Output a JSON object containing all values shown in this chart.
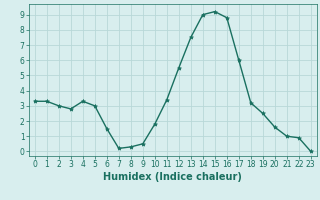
{
  "x": [
    0,
    1,
    2,
    3,
    4,
    5,
    6,
    7,
    8,
    9,
    10,
    11,
    12,
    13,
    14,
    15,
    16,
    17,
    18,
    19,
    20,
    21,
    22,
    23
  ],
  "y": [
    3.3,
    3.3,
    3.0,
    2.8,
    3.3,
    3.0,
    1.5,
    0.2,
    0.3,
    0.5,
    1.8,
    3.4,
    5.5,
    7.5,
    9.0,
    9.2,
    8.8,
    6.0,
    3.2,
    2.5,
    1.6,
    1.0,
    0.9,
    0.0
  ],
  "line_color": "#1a7060",
  "marker": "*",
  "marker_size": 3,
  "bg_color": "#d8eeee",
  "grid_color": "#b8d8d8",
  "xlabel": "Humidex (Indice chaleur)",
  "xlim": [
    -0.5,
    23.5
  ],
  "ylim": [
    -0.3,
    9.7
  ],
  "xticks": [
    0,
    1,
    2,
    3,
    4,
    5,
    6,
    7,
    8,
    9,
    10,
    11,
    12,
    13,
    14,
    15,
    16,
    17,
    18,
    19,
    20,
    21,
    22,
    23
  ],
  "yticks": [
    0,
    1,
    2,
    3,
    4,
    5,
    6,
    7,
    8,
    9
  ],
  "tick_fontsize": 5.5,
  "xlabel_fontsize": 7
}
